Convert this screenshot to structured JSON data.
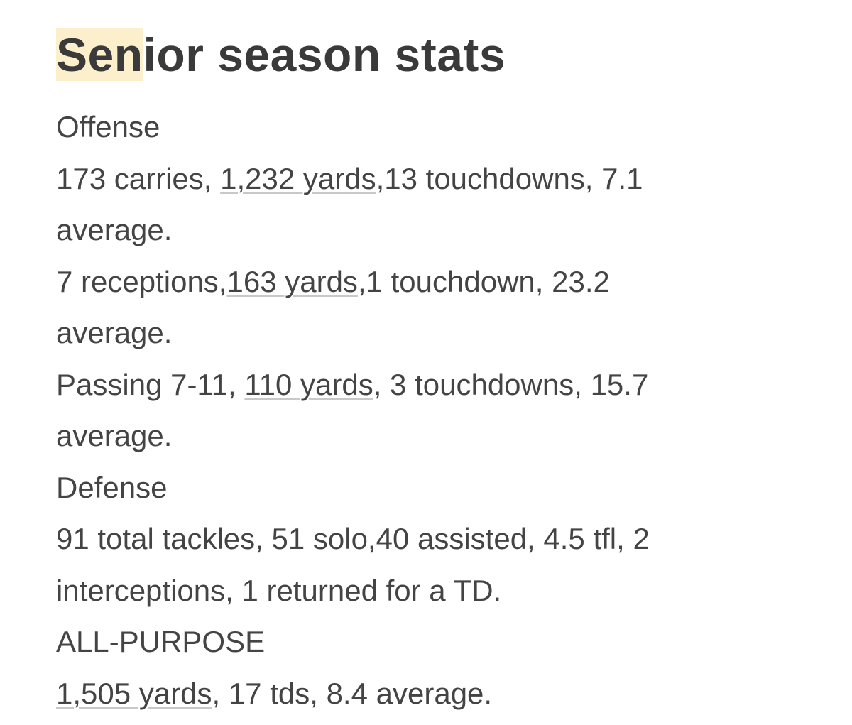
{
  "title": {
    "highlighted": "Sen",
    "rest": "ior season stats"
  },
  "sections": {
    "offense": {
      "heading": "Offense",
      "rushing": {
        "before": "173 carries, ",
        "link": "1,232 yards",
        "after_line1": ",13 touchdowns, 7.1",
        "line2": "average."
      },
      "receiving": {
        "before": "7 receptions,",
        "link": "163 yards",
        "after_line1": ",1 touchdown, 23.2",
        "line2": "average."
      },
      "passing": {
        "before": "Passing 7-11, ",
        "link": "110 yards",
        "after_line1": ", 3 touchdowns, 15.7",
        "line2": "average."
      }
    },
    "defense": {
      "heading": "Defense",
      "line1": "91 total tackles, 51 solo,40 assisted, 4.5 tfl, 2",
      "line2": "interceptions, 1 returned for a TD."
    },
    "all_purpose": {
      "heading": "ALL-PURPOSE",
      "link": "1,505 yards",
      "after": ", 17 tds, 8.4 average."
    }
  },
  "colors": {
    "highlight": "#fbefcc",
    "text": "#444444",
    "underline": "#c8c8c8"
  }
}
